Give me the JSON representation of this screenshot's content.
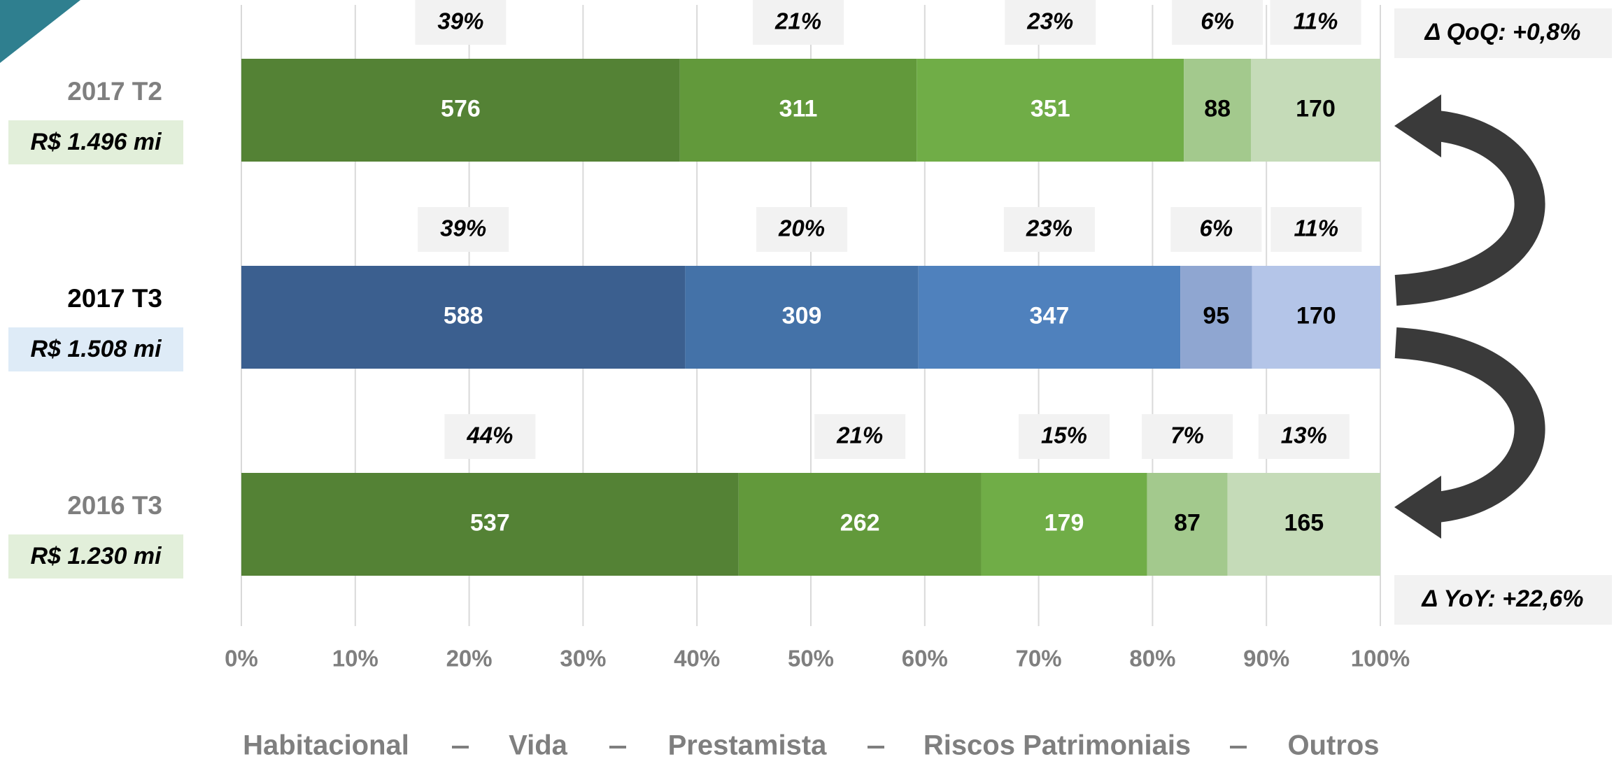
{
  "chart_data": {
    "type": "bar",
    "stacking": "percent",
    "categories": [
      "2017 T2",
      "2017 T3",
      "2016 T3"
    ],
    "category_colors": [
      "#7f7f7f",
      "#000000",
      "#7f7f7f"
    ],
    "totals": [
      "R$ 1.496 mi",
      "R$ 1.508 mi",
      "R$ 1.230 mi"
    ],
    "total_colors": [
      "#e2efda",
      "#deebf7",
      "#e2efda"
    ],
    "series": [
      {
        "name": "Habitacional",
        "colors": [
          "#548235",
          "#3b5f8f",
          "#548235"
        ],
        "text_color": "#ffffff",
        "values": [
          576,
          588,
          537
        ],
        "share_labels": [
          "39%",
          "39%",
          "44%"
        ]
      },
      {
        "name": "Vida",
        "colors": [
          "#62993b",
          "#4472a8",
          "#62993b"
        ],
        "text_color": "#ffffff",
        "values": [
          311,
          309,
          262
        ],
        "share_labels": [
          "21%",
          "20%",
          "21%"
        ]
      },
      {
        "name": "Prestamista",
        "colors": [
          "#70ad47",
          "#4f81bd",
          "#70ad47"
        ],
        "text_color": "#ffffff",
        "values": [
          351,
          347,
          179
        ],
        "share_labels": [
          "23%",
          "23%",
          "15%"
        ]
      },
      {
        "name": "Riscos Patrimoniais",
        "colors": [
          "#a3c98d",
          "#8fa6d1",
          "#a3c98d"
        ],
        "text_color": "#000000",
        "values": [
          88,
          95,
          87
        ],
        "share_labels": [
          "6%",
          "6%",
          "7%"
        ]
      },
      {
        "name": "Outros",
        "colors": [
          "#c5dbb8",
          "#b4c5e8",
          "#c5dbb8"
        ],
        "text_color": "#000000",
        "values": [
          170,
          170,
          165
        ],
        "share_labels": [
          "11%",
          "11%",
          "13%"
        ]
      }
    ],
    "xlim": [
      0,
      100
    ],
    "xticks": [
      {
        "value": 0,
        "label": "0%"
      },
      {
        "value": 10,
        "label": "10%"
      },
      {
        "value": 20,
        "label": "20%"
      },
      {
        "value": 30,
        "label": "30%"
      },
      {
        "value": 40,
        "label": "40%"
      },
      {
        "value": 50,
        "label": "50%"
      },
      {
        "value": 60,
        "label": "60%"
      },
      {
        "value": 70,
        "label": "70%"
      },
      {
        "value": 80,
        "label": "80%"
      },
      {
        "value": 90,
        "label": "90%"
      },
      {
        "value": 100,
        "label": "100%"
      }
    ],
    "grid": true,
    "annotations": [
      "Δ QoQ: +0,8%",
      "Δ YoY: +22,6%"
    ]
  }
}
